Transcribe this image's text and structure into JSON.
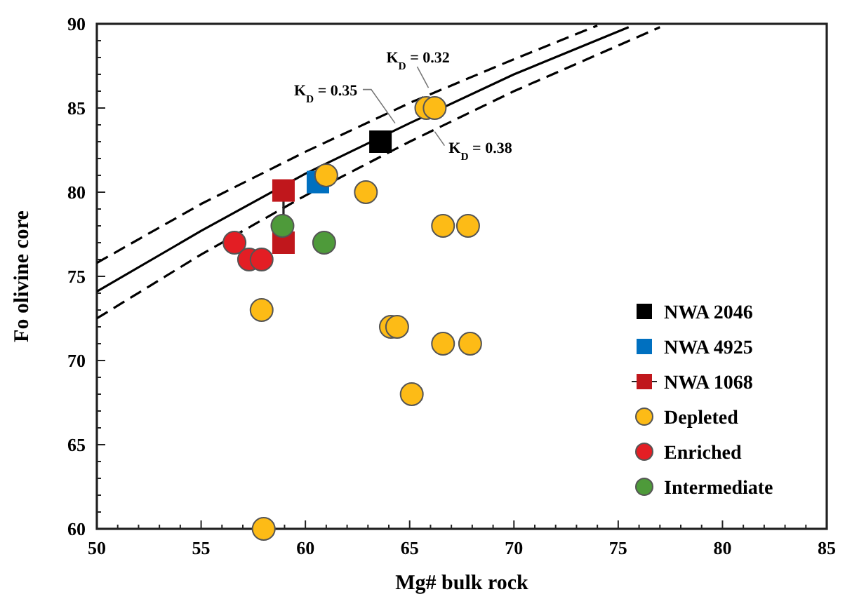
{
  "chart_data": {
    "type": "scatter",
    "xlabel": "Mg# bulk rock",
    "ylabel": "Fo olivine core",
    "xlim": [
      50,
      85
    ],
    "ylim": [
      60,
      90
    ],
    "xticks": [
      50,
      {
        "value": 51,
        "label": null
      },
      {
        "value": 52,
        "label": null
      },
      {
        "value": 53,
        "label": null
      },
      {
        "value": 54,
        "label": null
      },
      55,
      {
        "value": 56,
        "label": null
      },
      {
        "value": 57,
        "label": null
      },
      {
        "value": 58,
        "label": null
      },
      {
        "value": 59,
        "label": null
      },
      60,
      {
        "value": 61,
        "label": null
      },
      {
        "value": 62,
        "label": null
      },
      {
        "value": 63,
        "label": null
      },
      {
        "value": 64,
        "label": null
      },
      65,
      {
        "value": 66,
        "label": null
      },
      {
        "value": 67,
        "label": null
      },
      {
        "value": 68,
        "label": null
      },
      {
        "value": 69,
        "label": null
      },
      70,
      {
        "value": 71,
        "label": null
      },
      {
        "value": 72,
        "label": null
      },
      {
        "value": 73,
        "label": null
      },
      {
        "value": 74,
        "label": null
      },
      75,
      {
        "value": 76,
        "label": null
      },
      {
        "value": 77,
        "label": null
      },
      {
        "value": 78,
        "label": null
      },
      {
        "value": 79,
        "label": null
      },
      80,
      {
        "value": 81,
        "label": null
      },
      {
        "value": 82,
        "label": null
      },
      {
        "value": 83,
        "label": null
      },
      {
        "value": 84,
        "label": null
      },
      85
    ],
    "yticks": [
      60,
      {
        "value": 61,
        "label": null
      },
      {
        "value": 62,
        "label": null
      },
      {
        "value": 63,
        "label": null
      },
      {
        "value": 64,
        "label": null
      },
      65,
      {
        "value": 66,
        "label": null
      },
      {
        "value": 67,
        "label": null
      },
      {
        "value": 68,
        "label": null
      },
      {
        "value": 69,
        "label": null
      },
      70,
      {
        "value": 71,
        "label": null
      },
      {
        "value": 72,
        "label": null
      },
      {
        "value": 73,
        "label": null
      },
      {
        "value": 74,
        "label": null
      },
      75,
      {
        "value": 76,
        "label": null
      },
      {
        "value": 77,
        "label": null
      },
      {
        "value": 78,
        "label": null
      },
      {
        "value": 79,
        "label": null
      },
      80,
      {
        "value": 81,
        "label": null
      },
      {
        "value": 82,
        "label": null
      },
      {
        "value": 83,
        "label": null
      },
      {
        "value": 84,
        "label": null
      },
      85,
      {
        "value": 86,
        "label": null
      },
      {
        "value": 87,
        "label": null
      },
      {
        "value": 88,
        "label": null
      },
      {
        "value": 89,
        "label": null
      },
      90
    ],
    "grid": false,
    "legend": "bottom right",
    "series": [
      {
        "type": "line",
        "color": "#000000",
        "line_style": "dashed",
        "marker": "none",
        "x": [
          50,
          55,
          60,
          65,
          70,
          74
        ],
        "values": [
          75.8,
          79.3,
          82.4,
          85.3,
          87.9,
          89.9
        ]
      },
      {
        "type": "line",
        "color": "#000000",
        "line_style": "solid",
        "marker": "none",
        "x": [
          50,
          55,
          60,
          65,
          70,
          75.5
        ],
        "values": [
          74.1,
          77.7,
          81.1,
          84.1,
          87.0,
          89.8
        ]
      },
      {
        "type": "line",
        "color": "#000000",
        "line_style": "dashed",
        "marker": "none",
        "x": [
          50,
          55,
          60,
          65,
          70,
          77
        ],
        "values": [
          72.5,
          76.3,
          79.8,
          83.0,
          86.0,
          89.8
        ]
      },
      {
        "name": "NWA 2046",
        "type": "scatter",
        "color": "#000000",
        "marker": "square",
        "x": [
          63.6
        ],
        "values": [
          83
        ]
      },
      {
        "name": "NWA 4925",
        "type": "scatter",
        "color": "#0070c0",
        "marker": "square",
        "x": [
          60.6
        ],
        "values": [
          80.6
        ]
      },
      {
        "name": "NWA 1068",
        "type": "line",
        "color": "#c0171c",
        "marker": "square",
        "x": [
          58.95,
          58.95
        ],
        "values": [
          80.1,
          77
        ]
      },
      {
        "name": "Depleted",
        "type": "scatter",
        "color": "#fdbb16",
        "marker": "circle",
        "x": [
          58,
          57.9,
          64.1,
          64.4,
          65.1,
          66.6,
          67.9,
          66.6,
          67.8,
          62.9,
          61,
          65.8,
          66.2
        ],
        "values": [
          60,
          73,
          72,
          72,
          68,
          71,
          71,
          78,
          78,
          80,
          81,
          85,
          85
        ]
      },
      {
        "name": "Enriched",
        "type": "scatter",
        "color": "#e31e24",
        "marker": "circle",
        "x": [
          56.6,
          57.3,
          57.9
        ],
        "values": [
          77,
          76,
          76
        ]
      },
      {
        "name": "Intermediate",
        "type": "scatter",
        "color": "#4e9a3a",
        "marker": "circle",
        "x": [
          58.9,
          60.9
        ],
        "values": [
          78,
          77
        ]
      }
    ],
    "annotations": [
      {
        "text": "K$_{D}$ = 0.32",
        "x": 65.9,
        "y": 86.2
      },
      {
        "text": "K$_{D}$ = 0.35",
        "x": 64.3,
        "y": 84.1
      },
      {
        "text": "K$_{D}$ = 0.38",
        "x": 66.2,
        "y": 83.6
      }
    ]
  }
}
